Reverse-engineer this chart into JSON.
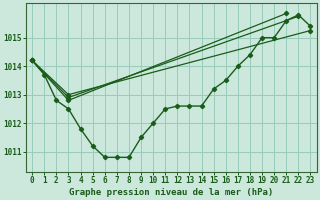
{
  "title": "Graphe pression niveau de la mer (hPa)",
  "bg_color": "#cce8dc",
  "grid_color": "#99ccbb",
  "line_color": "#1a5c1a",
  "spine_color": "#336633",
  "xlim": [
    -0.5,
    23.5
  ],
  "ylim": [
    1010.3,
    1016.2
  ],
  "yticks": [
    1011,
    1012,
    1013,
    1014,
    1015
  ],
  "xticks": [
    0,
    1,
    2,
    3,
    4,
    5,
    6,
    7,
    8,
    9,
    10,
    11,
    12,
    13,
    14,
    15,
    16,
    17,
    18,
    19,
    20,
    21,
    22,
    23
  ],
  "series_main": {
    "x": [
      0,
      1,
      2,
      3,
      4,
      5,
      6,
      7,
      8,
      9,
      10,
      11,
      12,
      13,
      14,
      15,
      16,
      17,
      18,
      19,
      20,
      21,
      22,
      23
    ],
    "y": [
      1014.2,
      1013.7,
      1012.8,
      1012.5,
      1011.8,
      1011.2,
      1010.8,
      1010.8,
      1010.8,
      1011.5,
      1012.0,
      1012.5,
      1012.6,
      1012.6,
      1012.6,
      1013.2,
      1013.5,
      1014.0,
      1014.4,
      1015.0,
      1015.0,
      1015.6,
      1015.8,
      1015.4
    ]
  },
  "series_trend": [
    {
      "x": [
        0,
        3,
        23
      ],
      "y": [
        1014.2,
        1013.0,
        1015.25
      ]
    },
    {
      "x": [
        0,
        3,
        22
      ],
      "y": [
        1014.2,
        1012.9,
        1015.75
      ]
    },
    {
      "x": [
        0,
        3,
        21
      ],
      "y": [
        1014.2,
        1012.8,
        1015.85
      ]
    }
  ],
  "tick_fontsize": 5.5,
  "label_fontsize": 6.5
}
